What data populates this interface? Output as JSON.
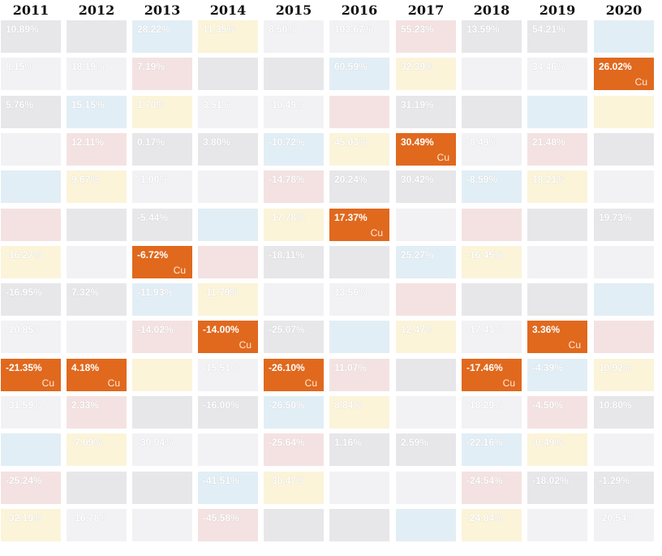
{
  "colors": {
    "highlight": "#e0691e",
    "tint_gray": "#e7e7ea",
    "tint_light": "#f2f2f4",
    "tint_yellow": "#fbf4d9",
    "tint_red": "#f4e2e2",
    "tint_blue": "#e2eef5"
  },
  "chart_data": {
    "type": "table",
    "title": "",
    "highlight_label": "Cu",
    "years": [
      "2011",
      "2012",
      "2013",
      "2014",
      "2015",
      "2016",
      "2017",
      "2018",
      "2019",
      "2020"
    ],
    "columns": [
      {
        "year": "2011",
        "highlight_row": 9,
        "values": [
          "10.89%",
          "8.15%",
          "5.76%",
          "",
          "",
          "",
          "-16.27%",
          "-16.95%",
          "-20.85%",
          "-21.35%",
          "-31.59%",
          "",
          "-25.24%",
          "-32.19%"
        ]
      },
      {
        "year": "2012",
        "highlight_row": 9,
        "values": [
          "",
          "18.19%",
          "15.15%",
          "12.11%",
          "9.67%",
          "",
          "",
          "7.32%",
          "",
          "4.18%",
          "2.33%",
          "-7.09%",
          "",
          "-16.78%"
        ]
      },
      {
        "year": "2013",
        "highlight_row": 6,
        "values": [
          "28.22%",
          "7.19%",
          "1.70%",
          "0.17%",
          "-1.00%",
          "-5.44%",
          "-6.72%",
          "-11.93%",
          "-14.02%",
          "",
          "",
          "-30.04%",
          "",
          ""
        ]
      },
      {
        "year": "2014",
        "highlight_row": 8,
        "values": [
          "11.35%",
          "",
          "3.51%",
          "3.80%",
          "",
          "",
          "",
          "-11.79%",
          "-14.00%",
          "-15.51%",
          "-16.00%",
          "",
          "-41.51%",
          "-45.58%"
        ]
      },
      {
        "year": "2015",
        "highlight_row": 9,
        "values": [
          "8.50%",
          "",
          "-10.49%",
          "-10.72%",
          "-14.78%",
          "-17.78%",
          "-18.11%",
          "",
          "-25.07%",
          "-26.10%",
          "-26.50%",
          "-25.64%",
          "-30.47%",
          ""
        ]
      },
      {
        "year": "2016",
        "highlight_row": 5,
        "values": [
          "103.67%",
          "60.59%",
          "",
          "45.03%",
          "20.24%",
          "17.37%",
          "",
          "13.56%",
          "",
          "11.07%",
          "8.84%",
          "1.16%",
          "",
          ""
        ]
      },
      {
        "year": "2017",
        "highlight_row": 3,
        "values": [
          "55.23%",
          "32.39%",
          "31.19%",
          "30.49%",
          "30.42%",
          "",
          "25.27%",
          "",
          "12.47%",
          "",
          "",
          "2.59%",
          "",
          ""
        ]
      },
      {
        "year": "2018",
        "highlight_row": 9,
        "values": [
          "13.59%",
          "",
          "",
          "-8.49%",
          "-8.59%",
          "",
          "-16.45%",
          "",
          "-17.43%",
          "-17.46%",
          "-18.29%",
          "-22.16%",
          "-24.54%",
          "-24.84%"
        ]
      },
      {
        "year": "2019",
        "highlight_row": 8,
        "values": [
          "54.21%",
          "34.46%",
          "",
          "21.48%",
          "18.21%",
          "",
          "",
          "",
          "3.36%",
          "-4.39%",
          "-4.50%",
          "-0.49%",
          "-18.02%",
          ""
        ]
      },
      {
        "year": "2020",
        "highlight_row": 1,
        "values": [
          "",
          "26.02%",
          "",
          "",
          "",
          "19.73%",
          "",
          "",
          "",
          "10.92%",
          "10.80%",
          "",
          "-1.29%",
          "-20.54%"
        ]
      }
    ]
  }
}
